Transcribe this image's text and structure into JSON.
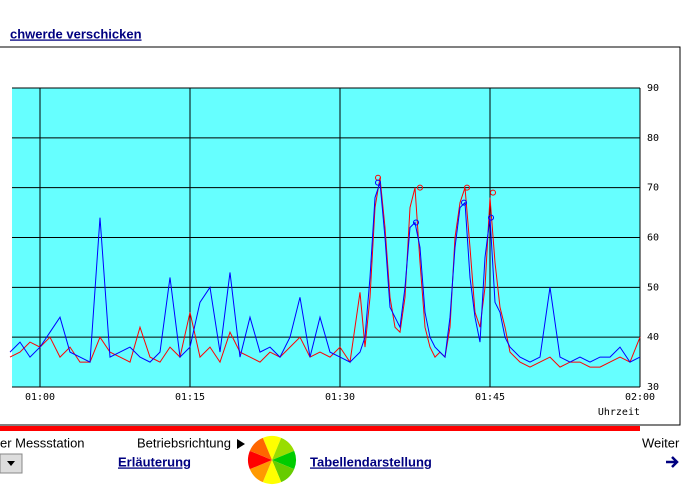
{
  "header": {
    "link": "chwerde verschicken"
  },
  "chart_data": {
    "type": "line",
    "xlabel": "Uhrzeit",
    "x": [
      57,
      58,
      59,
      60,
      61,
      62,
      63,
      64,
      65,
      66,
      67,
      68,
      69,
      70,
      71,
      72,
      73,
      74,
      75,
      76,
      77,
      78,
      79,
      80,
      81,
      82,
      83,
      84,
      85,
      86,
      87,
      88,
      89,
      90,
      91,
      92,
      92.5,
      93,
      93.5,
      94,
      94.5,
      95,
      95.5,
      96,
      96.5,
      97,
      97.5,
      98,
      98.5,
      99,
      99.5,
      100,
      100.5,
      101,
      101.5,
      102,
      102.5,
      103,
      103.5,
      104,
      104.5,
      105,
      105.5,
      106,
      106.5,
      107,
      108,
      109,
      110,
      111,
      112,
      113,
      114,
      115,
      116,
      117,
      118,
      119,
      120
    ],
    "series": [
      {
        "color": "#ff0000",
        "values": [
          36,
          37,
          39,
          38,
          40,
          36,
          38,
          35,
          35,
          40,
          37,
          36,
          35,
          42,
          36,
          35,
          38,
          36,
          45,
          36,
          38,
          35,
          41,
          37,
          36,
          35,
          37,
          36,
          38,
          40,
          36,
          37,
          36,
          38,
          35,
          49,
          38,
          48,
          66,
          72,
          62,
          48,
          42,
          41,
          48,
          66,
          70,
          55,
          42,
          38,
          36,
          37,
          36,
          42,
          60,
          67,
          70,
          58,
          45,
          42,
          50,
          68,
          55,
          46,
          42,
          37,
          35,
          34,
          35,
          36,
          34,
          35,
          35,
          34,
          34,
          35,
          36,
          35,
          40
        ],
        "markers_x": [
          93.8,
          98,
          102.7,
          105.3
        ],
        "markers_values": [
          72,
          70,
          70,
          69
        ]
      },
      {
        "color": "#0000ff",
        "values": [
          37,
          39,
          36,
          38,
          41,
          44,
          37,
          36,
          35,
          64,
          36,
          37,
          38,
          36,
          35,
          37,
          52,
          36,
          38,
          47,
          50,
          37,
          53,
          36,
          44,
          37,
          38,
          36,
          40,
          48,
          36,
          44,
          37,
          36,
          35,
          37,
          40,
          52,
          68,
          71,
          60,
          46,
          44,
          42,
          50,
          62,
          63,
          58,
          45,
          40,
          38,
          37,
          36,
          44,
          58,
          66,
          67,
          52,
          44,
          39,
          56,
          64,
          47,
          45,
          40,
          38,
          36,
          35,
          36,
          50,
          36,
          35,
          36,
          35,
          36,
          36,
          38,
          35,
          36
        ],
        "markers_x": [
          93.8,
          97.6,
          102.4,
          105.1
        ],
        "markers_values": [
          71,
          63,
          67,
          64
        ]
      }
    ],
    "xlim": [
      57.2,
      120
    ],
    "xticks": [
      {
        "value": 60,
        "label": "01:00"
      },
      {
        "value": 75,
        "label": "01:15"
      },
      {
        "value": 90,
        "label": "01:30"
      },
      {
        "value": 105,
        "label": "01:45"
      },
      {
        "value": 120,
        "label": "02:00"
      }
    ],
    "ylim": [
      30,
      90
    ],
    "yticks": [
      30,
      40,
      50,
      60,
      70,
      80,
      90
    ],
    "grid": true,
    "background": "#66ffff"
  },
  "footer": {
    "station": "er Messstation",
    "direction": "Betriebsrichtung",
    "next": "Weiter",
    "explain": "Erläuterung",
    "table": "Tabellendarstellung"
  }
}
